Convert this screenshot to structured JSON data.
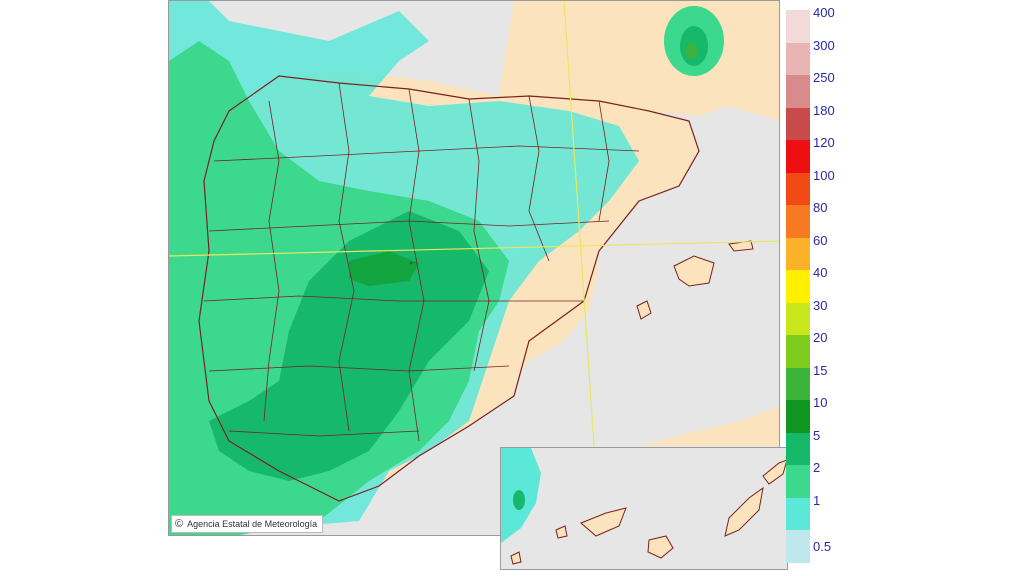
{
  "map": {
    "credit": "Agencia Estatal de Meteorología",
    "copyright_symbol": "©"
  },
  "legend": {
    "items": [
      {
        "label": "400",
        "color": "#f2dada"
      },
      {
        "label": "300",
        "color": "#e8b4b4"
      },
      {
        "label": "250",
        "color": "#d98a8a"
      },
      {
        "label": "180",
        "color": "#c84a4a"
      },
      {
        "label": "120",
        "color": "#ee1010"
      },
      {
        "label": "100",
        "color": "#f24a14"
      },
      {
        "label": "80",
        "color": "#f77a22"
      },
      {
        "label": "60",
        "color": "#fbb12a"
      },
      {
        "label": "40",
        "color": "#fff000"
      },
      {
        "label": "30",
        "color": "#c8e61c"
      },
      {
        "label": "20",
        "color": "#80cc1c"
      },
      {
        "label": "15",
        "color": "#3cb43c"
      },
      {
        "label": "10",
        "color": "#10961e"
      },
      {
        "label": "5",
        "color": "#16b86a"
      },
      {
        "label": "2",
        "color": "#3cd88e"
      },
      {
        "label": "1",
        "color": "#5ce8d8"
      },
      {
        "label": "0.5",
        "color": "#bfe8ec"
      }
    ]
  }
}
